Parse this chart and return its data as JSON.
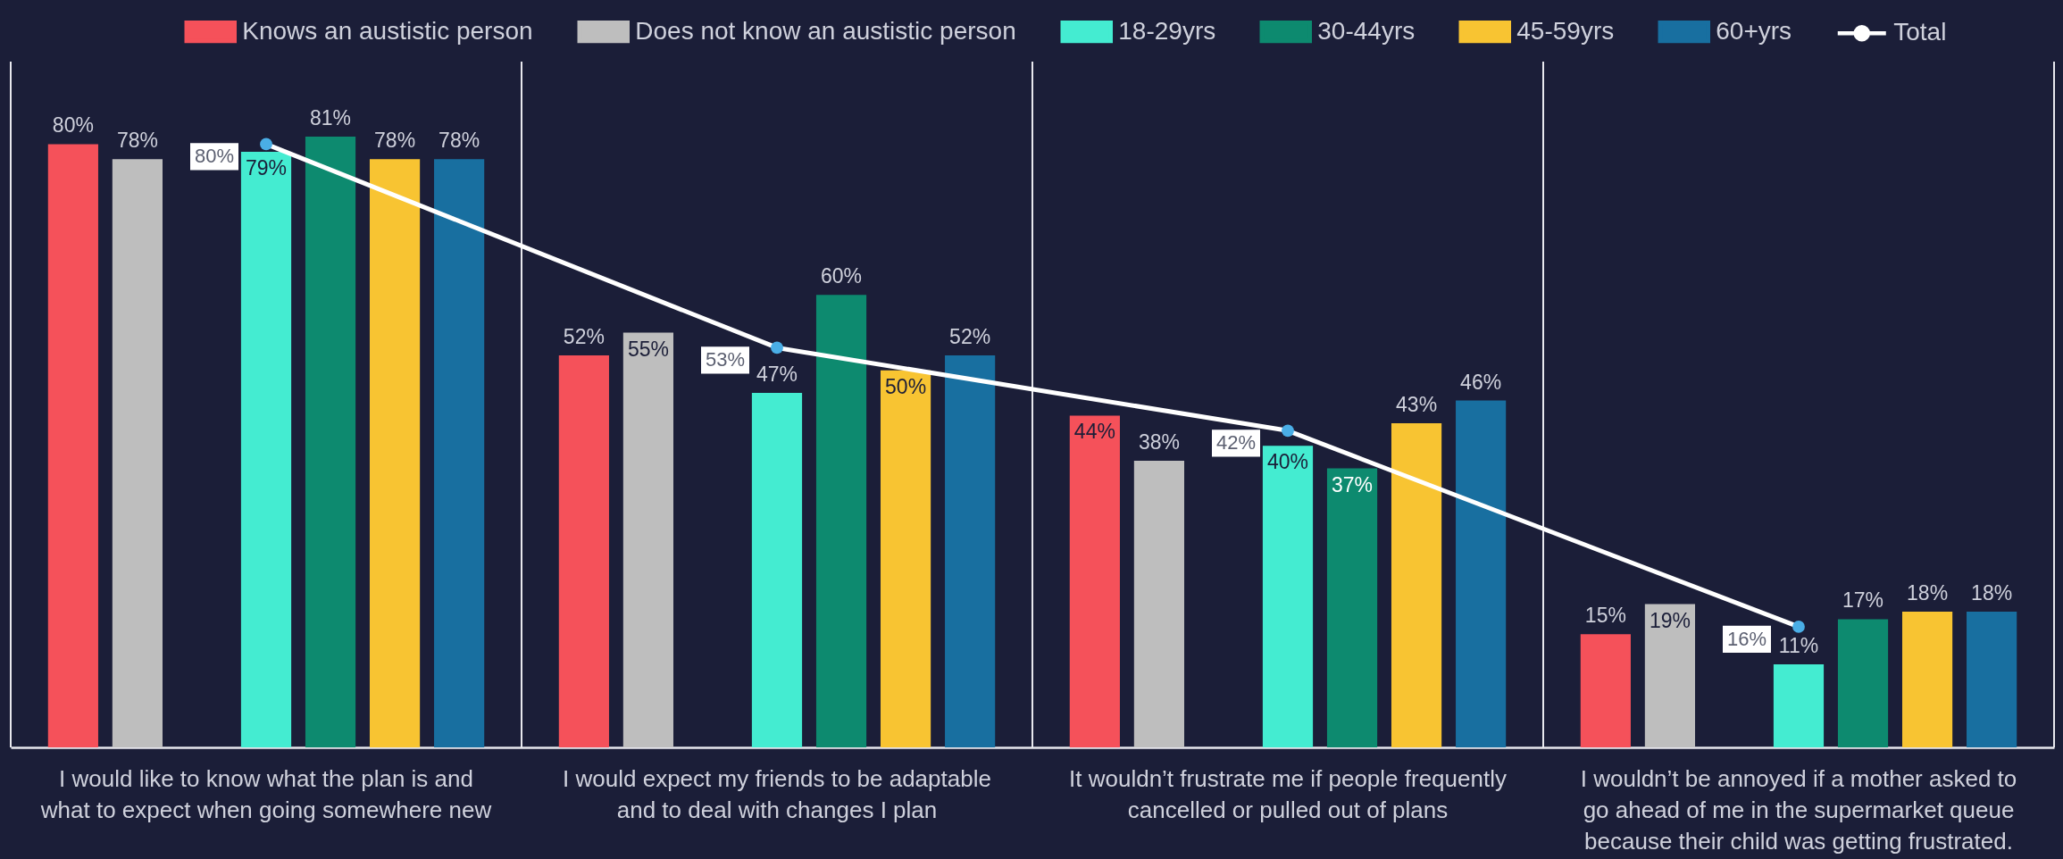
{
  "chart_data": {
    "type": "bar",
    "categories": [
      "I would like to know what the plan is and\nwhat to expect when going somewhere new",
      "I would expect my friends to be adaptable\nand to deal with changes I plan",
      "It wouldn’t  frustrate me if people frequently\ncancelled or pulled out of plans",
      "I wouldn’t be annoyed if a mother asked to\ngo ahead of me in the supermarket queue\nbecause their child was getting frustrated."
    ],
    "series": [
      {
        "name": "Knows an austistic person",
        "color": "#f5515a",
        "values": [
          80,
          52,
          44,
          15
        ],
        "value_labels": [
          "80%",
          "52%",
          "44%",
          "15%"
        ]
      },
      {
        "name": "Does not know an austistic person",
        "color": "#bebebe",
        "values": [
          78,
          55,
          38,
          19
        ],
        "value_labels": [
          "78%",
          "55%",
          "38%",
          "19%"
        ]
      },
      {
        "name": "18-29yrs",
        "color": "#44ecd1",
        "values": [
          79,
          47,
          40,
          11
        ],
        "value_labels": [
          "79%",
          "47%",
          "40%",
          "11%"
        ]
      },
      {
        "name": "30-44yrs",
        "color": "#0d8a6f",
        "values": [
          81,
          60,
          37,
          17
        ],
        "value_labels": [
          "81%",
          "60%",
          "37%",
          "17%"
        ]
      },
      {
        "name": "45-59yrs",
        "color": "#f8c432",
        "values": [
          78,
          50,
          43,
          18
        ],
        "value_labels": [
          "78%",
          "50%",
          "43%",
          "18%"
        ]
      },
      {
        "name": "60+yrs",
        "color": "#186fa0",
        "values": [
          78,
          52,
          46,
          18
        ],
        "value_labels": [
          "78%",
          "52%",
          "46%",
          "18%"
        ]
      },
      {
        "name": "Total",
        "type": "line",
        "color": "#ffffff",
        "colors": [
          "#4aaee6",
          "#4aaee6",
          "#4aaee6",
          "#4aaee6"
        ],
        "values": [
          80,
          53,
          42,
          16
        ],
        "value_labels": [
          "80%",
          "53%",
          "42%",
          "16%"
        ]
      }
    ],
    "marker": "circle",
    "legend": "top",
    "tick_labels": "x"
  }
}
